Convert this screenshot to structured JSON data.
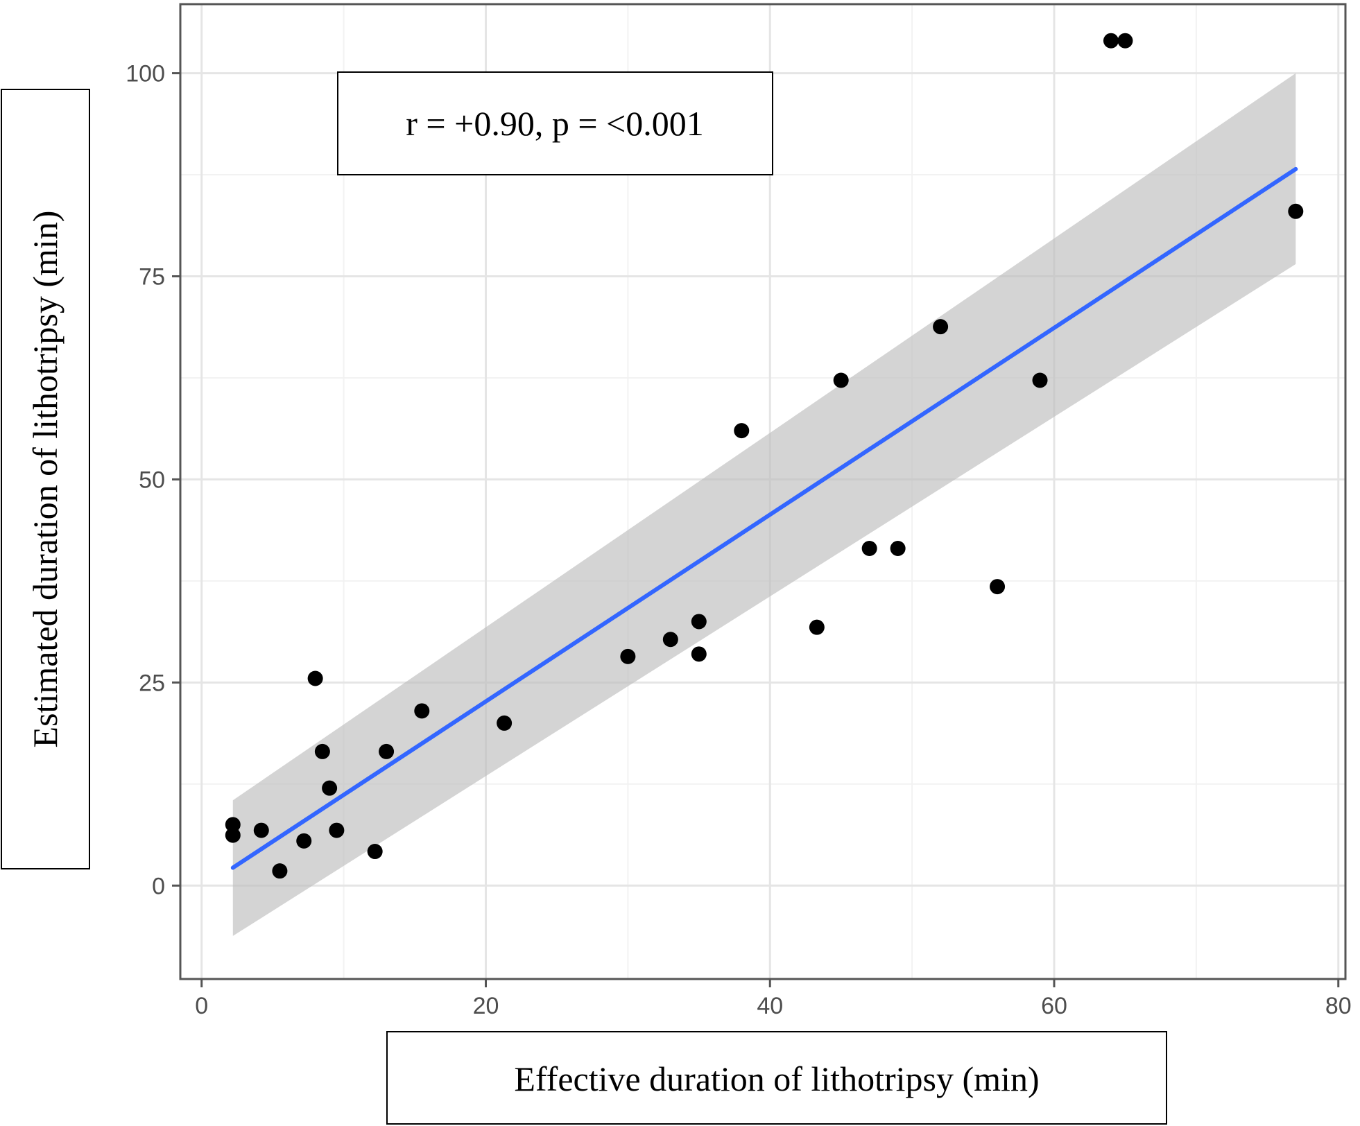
{
  "chart_data": {
    "type": "scatter",
    "title": "",
    "xlabel": "Effective duration of lithotripsy (min)",
    "ylabel": "Estimated duration of lithotripsy (min)",
    "annotation": "r = +0.90, p = <0.001",
    "xlim": [
      -1.5,
      80.5
    ],
    "ylim": [
      -11.5,
      108.5
    ],
    "x_ticks": [
      0,
      20,
      40,
      60,
      80
    ],
    "y_ticks": [
      0,
      25,
      50,
      75,
      100
    ],
    "grid": true,
    "legend": "none",
    "colors": {
      "points": "#000000",
      "fit_line": "#3366ff",
      "confidence_band": "#bdbdbd",
      "grid_major": "#e5e5e5",
      "grid_minor": "#f2f2f2",
      "axis": "#555555"
    },
    "series": [
      {
        "x": [
          2.2,
          2.2,
          4.2,
          5.5,
          7.2,
          8.0,
          8.5,
          9.0,
          9.5,
          12.2,
          13.0,
          15.5,
          21.3,
          30.0,
          33.0,
          35.0,
          35.0,
          38.0,
          43.3,
          45.0,
          47.0,
          49.0,
          52.0,
          56.0,
          59.0,
          64.0,
          65.0,
          77.0
        ],
        "y": [
          6.2,
          7.5,
          6.8,
          1.8,
          5.5,
          25.5,
          16.5,
          12.0,
          6.8,
          4.2,
          16.5,
          21.5,
          20.0,
          28.2,
          30.3,
          28.5,
          32.5,
          56.0,
          31.8,
          62.2,
          41.5,
          41.5,
          68.8,
          36.8,
          62.2,
          104.0,
          104.0,
          83.0
        ]
      }
    ],
    "fit": {
      "x": [
        2.2,
        77.0
      ],
      "y": [
        2.2,
        88.2
      ],
      "ci_lower": [
        -6.2,
        76.5
      ],
      "ci_upper": [
        10.5,
        100.0
      ]
    }
  }
}
